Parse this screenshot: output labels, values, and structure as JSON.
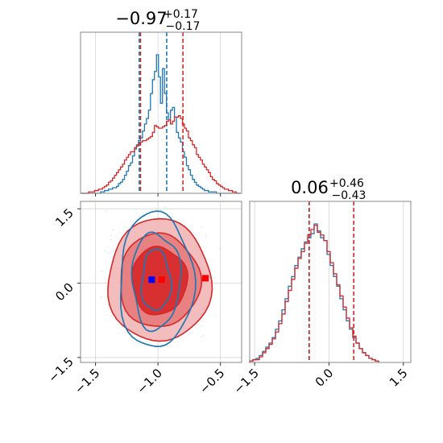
{
  "chart_data": {
    "type": "corner",
    "parameters": [
      {
        "title": {
          "main": "−0.97",
          "sup": "+0.17",
          "sub": "−0.17"
        },
        "xticks": [
          -1.5,
          -1.0,
          -0.5
        ],
        "xtick_labels": [
          "−1.5",
          "−1.0",
          "−0.5"
        ],
        "xlim": [
          -1.62,
          -0.33
        ]
      },
      {
        "title": {
          "main": "0.06",
          "sup": "+0.46",
          "sub": "−0.43"
        },
        "xticks": [
          -1.5,
          0.0,
          1.5
        ],
        "xtick_labels": [
          "−1.5",
          "0.0",
          "1.5"
        ],
        "xlim": [
          -1.6,
          1.65
        ]
      }
    ],
    "joint_panel": {
      "ylim": [
        -1.6,
        1.65
      ],
      "yticks": [
        1.5,
        0.0,
        -1.5
      ],
      "ytick_labels": [
        "1.5",
        "0.0",
        "−1.5"
      ],
      "blue_point": {
        "x": -1.05,
        "y": 0.07
      },
      "red_points": [
        {
          "x": -0.97,
          "y": 0.07
        },
        {
          "x": -0.62,
          "y": 0.1
        }
      ]
    },
    "series": [
      {
        "color": "#1f77b4",
        "quantile_lines_p1": [
          -1.15,
          -0.93
        ],
        "quantile_lines_p2": [
          -0.4,
          0.5
        ],
        "hist_p1": {
          "x_start": -1.62,
          "bin_width": 0.016,
          "values": [
            0,
            0,
            0,
            0,
            0,
            0,
            0,
            0,
            0,
            0,
            1,
            1,
            2,
            2,
            3,
            3,
            4,
            4,
            5,
            7,
            8,
            10,
            13,
            16,
            20,
            22,
            27,
            32,
            35,
            38,
            40,
            45,
            50,
            54,
            60,
            72,
            82,
            88,
            100,
            84,
            65,
            90,
            72,
            58,
            53,
            60,
            62,
            55,
            44,
            40,
            37,
            30,
            26,
            20,
            17,
            13,
            10,
            8,
            6,
            5,
            4,
            3,
            2,
            2,
            1,
            1,
            1,
            1,
            0,
            0,
            0,
            0,
            0,
            0,
            0,
            0,
            0,
            0,
            0,
            0
          ]
        },
        "hist_p2": {
          "x_start": -1.6,
          "bin_width": 0.065,
          "values": [
            1,
            2,
            3,
            5,
            8,
            11,
            14,
            18,
            24,
            30,
            38,
            46,
            55,
            62,
            70,
            76,
            82,
            87,
            90,
            93,
            100,
            95,
            90,
            88,
            78,
            70,
            62,
            55,
            46,
            38,
            30,
            24,
            18,
            14,
            10,
            7,
            5,
            3,
            2,
            1
          ]
        }
      },
      {
        "color": "#d62728",
        "quantile_lines_p1": [
          -1.14,
          -0.8
        ],
        "quantile_lines_p2": [
          -0.4,
          0.5
        ],
        "hist_p1": {
          "x_start": -1.62,
          "bin_width": 0.016,
          "values": [
            0,
            0,
            0,
            0,
            1,
            1,
            1,
            2,
            2,
            3,
            3,
            4,
            5,
            6,
            8,
            9,
            11,
            13,
            15,
            17,
            19,
            21,
            24,
            26,
            28,
            30,
            30,
            33,
            34,
            36,
            37,
            38,
            38,
            39,
            40,
            41,
            44,
            49,
            48,
            47,
            47,
            48,
            49,
            52,
            53,
            50,
            52,
            55,
            55,
            56,
            54,
            50,
            47,
            45,
            40,
            38,
            35,
            33,
            28,
            26,
            24,
            21,
            19,
            17,
            15,
            12,
            10,
            9,
            7,
            6,
            5,
            4,
            3,
            3,
            2,
            2,
            1,
            1,
            0,
            0
          ]
        },
        "hist_p2": {
          "x_start": -1.6,
          "bin_width": 0.065,
          "values": [
            1,
            2,
            2,
            4,
            7,
            10,
            13,
            17,
            22,
            28,
            35,
            44,
            52,
            60,
            68,
            75,
            80,
            86,
            92,
            96,
            99,
            94,
            92,
            88,
            80,
            72,
            64,
            56,
            48,
            40,
            32,
            25,
            19,
            14,
            10,
            7,
            5,
            3,
            2,
            1
          ]
        }
      }
    ],
    "grid": true
  }
}
